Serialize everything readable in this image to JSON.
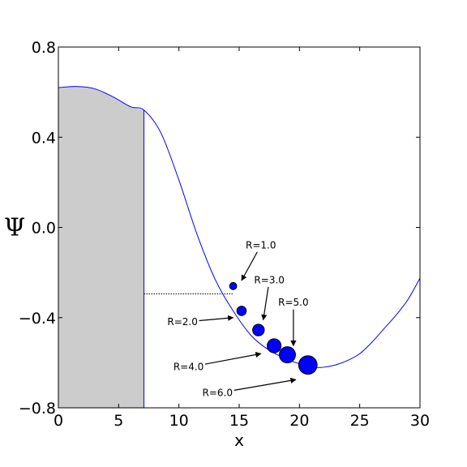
{
  "chart_data": {
    "type": "line",
    "title": "",
    "xlabel": "x",
    "ylabel": "Ψ",
    "xlim": [
      0,
      30
    ],
    "ylim": [
      -0.8,
      0.8
    ],
    "xticks": [
      0,
      5,
      10,
      15,
      20,
      25,
      30
    ],
    "yticks": [
      -0.8,
      -0.4,
      0.0,
      0.4,
      0.8
    ],
    "xtick_labels": [
      "0",
      "5",
      "10",
      "15",
      "20",
      "25",
      "30"
    ],
    "ytick_labels": [
      "−0.8",
      "−0.4",
      "0.0",
      "0.4",
      "0.8"
    ],
    "grid": false,
    "line_color": "#0000ff",
    "marker_color": "#0000ff",
    "shade_color": "#cccccc",
    "shaded_region": {
      "x": [
        0,
        7.1
      ]
    },
    "dotted_line": {
      "x": [
        7.1,
        14.5
      ],
      "y": -0.295
    },
    "series": [
      {
        "x": [
          0,
          1.5,
          3,
          4.5,
          6,
          7.1,
          8.5,
          10,
          11.5,
          13,
          14.5,
          16,
          17.5,
          19,
          20,
          21,
          22,
          23,
          24,
          25,
          26,
          27,
          28,
          29,
          30
        ],
        "values": [
          0.62,
          0.625,
          0.615,
          0.58,
          0.535,
          0.52,
          0.42,
          0.21,
          -0.03,
          -0.23,
          -0.37,
          -0.48,
          -0.545,
          -0.585,
          -0.605,
          -0.62,
          -0.62,
          -0.61,
          -0.59,
          -0.56,
          -0.51,
          -0.45,
          -0.39,
          -0.32,
          -0.225
        ]
      }
    ],
    "points": [
      {
        "label": "R=1.0",
        "x": 14.5,
        "y": -0.26,
        "r": 1.0,
        "text_x": 16.8,
        "text_y": -0.08,
        "tip_x": 15.2,
        "tip_y": -0.235
      },
      {
        "label": "R=2.0",
        "x": 15.2,
        "y": -0.37,
        "r": 2.0,
        "text_x": 10.3,
        "text_y": -0.42,
        "tip_x": 14.5,
        "tip_y": -0.4
      },
      {
        "label": "R=3.0",
        "x": 16.6,
        "y": -0.455,
        "r": 3.0,
        "text_x": 17.5,
        "text_y": -0.235,
        "tip_x": 17.0,
        "tip_y": -0.41
      },
      {
        "label": "R=4.0",
        "x": 17.9,
        "y": -0.525,
        "r": 4.0,
        "text_x": 10.8,
        "text_y": -0.62,
        "tip_x": 16.8,
        "tip_y": -0.56
      },
      {
        "label": "R=5.0",
        "x": 19.0,
        "y": -0.565,
        "r": 5.0,
        "text_x": 19.5,
        "text_y": -0.335,
        "tip_x": 19.5,
        "tip_y": -0.525
      },
      {
        "label": "R=6.0",
        "x": 20.7,
        "y": -0.61,
        "r": 6.0,
        "text_x": 13.2,
        "text_y": -0.735,
        "tip_x": 19.7,
        "tip_y": -0.675
      }
    ]
  }
}
